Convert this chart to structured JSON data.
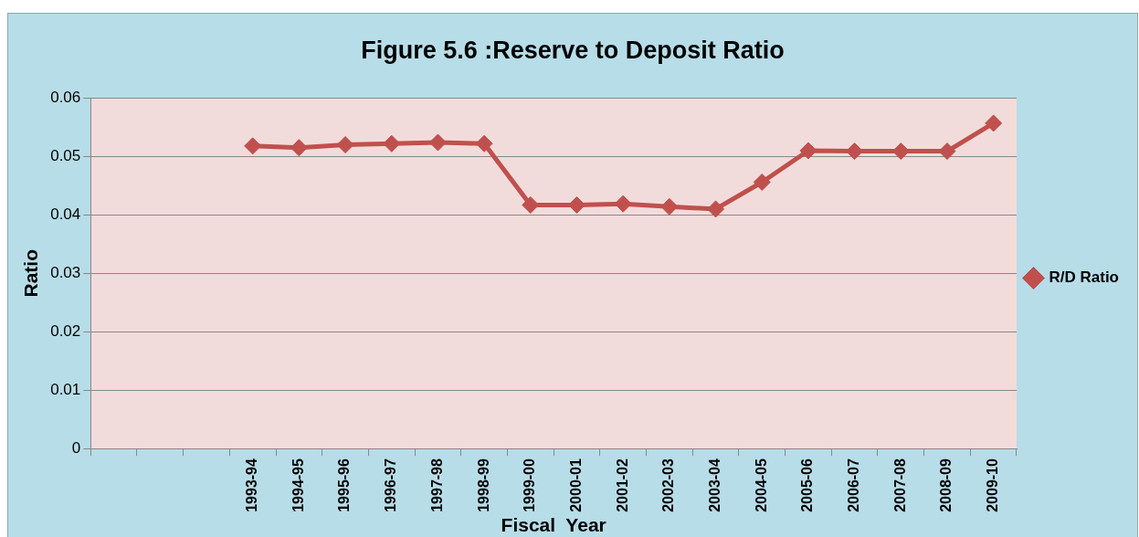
{
  "chart_data": {
    "type": "line",
    "title": "Figure 5.6 :Reserve to Deposit Ratio",
    "xlabel": "Fiscal  Year",
    "ylabel": "Ratio",
    "categories": [
      null,
      null,
      null,
      "1993-94",
      "1994-95",
      "1995-96",
      "1996-97",
      "1997-98",
      "1998-99",
      "1999-00",
      "2000-01",
      "2001-02",
      "2002-03",
      "2003-04",
      "2004-05",
      "2005-06",
      "2006-07",
      "2007-08",
      "2008-09",
      "2009-10"
    ],
    "series": [
      {
        "name": "R/D Ratio",
        "color": "#c0504d",
        "values": [
          null,
          null,
          null,
          0.0518,
          0.0515,
          0.052,
          0.0522,
          0.0524,
          0.0522,
          0.0417,
          0.0417,
          0.0419,
          0.0414,
          0.041,
          0.0456,
          0.051,
          0.0509,
          0.0509,
          0.0509,
          0.0557
        ]
      }
    ],
    "ylim": [
      0,
      0.06
    ],
    "yticks": [
      0,
      0.01,
      0.02,
      0.03,
      0.04,
      0.05,
      0.06
    ],
    "grid": "y",
    "legend": "right",
    "marker": "diamond",
    "line_style": "solid"
  }
}
